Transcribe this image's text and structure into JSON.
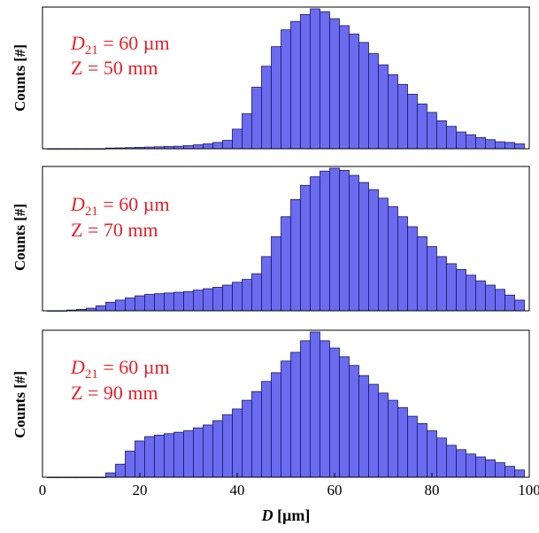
{
  "colors": {
    "bar_fill": "#6b6bf0",
    "bar_edge": "#1a1a66",
    "annotation": "#e8202a"
  },
  "chart_data": [
    {
      "type": "bar",
      "x_axis_label": "",
      "ylabel": "Counts [#]",
      "xlim": [
        0,
        100
      ],
      "annotation": {
        "d_symbol": "D",
        "d_subscript": "21",
        "d_value": " = 60 µm",
        "z_text": "Z = 50 mm"
      },
      "bins": [
        2,
        4,
        6,
        8,
        10,
        12,
        14,
        16,
        18,
        20,
        22,
        24,
        26,
        28,
        30,
        32,
        34,
        36,
        38,
        40,
        42,
        44,
        46,
        48,
        50,
        52,
        54,
        56,
        58,
        60,
        62,
        64,
        66,
        68,
        70,
        72,
        74,
        76,
        78,
        80,
        82,
        84,
        86,
        88,
        90,
        92,
        94,
        96,
        98
      ],
      "values": [
        0,
        0,
        0,
        0,
        0,
        0,
        0.005,
        0.006,
        0.008,
        0.01,
        0.012,
        0.014,
        0.016,
        0.018,
        0.022,
        0.028,
        0.035,
        0.045,
        0.06,
        0.14,
        0.25,
        0.44,
        0.59,
        0.73,
        0.85,
        0.91,
        0.96,
        1.0,
        0.98,
        0.93,
        0.88,
        0.82,
        0.76,
        0.68,
        0.6,
        0.53,
        0.46,
        0.39,
        0.32,
        0.26,
        0.2,
        0.16,
        0.12,
        0.1,
        0.08,
        0.065,
        0.05,
        0.045,
        0.035
      ]
    },
    {
      "type": "bar",
      "x_axis_label": "",
      "ylabel": "Counts [#]",
      "xlim": [
        0,
        100
      ],
      "annotation": {
        "d_symbol": "D",
        "d_subscript": "21",
        "d_value": " = 60 µm",
        "z_text": "Z = 70 mm"
      },
      "bins": [
        2,
        4,
        6,
        8,
        10,
        12,
        14,
        16,
        18,
        20,
        22,
        24,
        26,
        28,
        30,
        32,
        34,
        36,
        38,
        40,
        42,
        44,
        46,
        48,
        50,
        52,
        54,
        56,
        58,
        60,
        62,
        64,
        66,
        68,
        70,
        72,
        74,
        76,
        78,
        80,
        82,
        84,
        86,
        88,
        90,
        92,
        94,
        96,
        98
      ],
      "values": [
        0,
        0,
        0.005,
        0.01,
        0.018,
        0.035,
        0.06,
        0.075,
        0.09,
        0.105,
        0.115,
        0.12,
        0.125,
        0.13,
        0.135,
        0.145,
        0.155,
        0.165,
        0.18,
        0.2,
        0.22,
        0.26,
        0.38,
        0.52,
        0.66,
        0.78,
        0.88,
        0.94,
        0.98,
        1.0,
        0.985,
        0.95,
        0.9,
        0.85,
        0.79,
        0.73,
        0.66,
        0.59,
        0.52,
        0.45,
        0.38,
        0.33,
        0.29,
        0.25,
        0.21,
        0.18,
        0.15,
        0.11,
        0.075
      ]
    },
    {
      "type": "bar",
      "x_axis_label": "D [µm]",
      "ylabel": "Counts [#]",
      "xlim": [
        0,
        100
      ],
      "xticks": [
        0,
        20,
        40,
        60,
        80,
        100
      ],
      "annotation": {
        "d_symbol": "D",
        "d_subscript": "21",
        "d_value": " = 60 µm",
        "z_text": "Z = 90 mm"
      },
      "bins": [
        2,
        4,
        6,
        8,
        10,
        12,
        14,
        16,
        18,
        20,
        22,
        24,
        26,
        28,
        30,
        32,
        34,
        36,
        38,
        40,
        42,
        44,
        46,
        48,
        50,
        52,
        54,
        56,
        58,
        60,
        62,
        64,
        66,
        68,
        70,
        72,
        74,
        76,
        78,
        80,
        82,
        84,
        86,
        88,
        90,
        92,
        94,
        96,
        98
      ],
      "values": [
        0,
        0,
        0,
        0,
        0,
        0,
        0.03,
        0.09,
        0.18,
        0.25,
        0.28,
        0.29,
        0.3,
        0.31,
        0.32,
        0.34,
        0.36,
        0.39,
        0.43,
        0.47,
        0.53,
        0.59,
        0.66,
        0.72,
        0.8,
        0.86,
        0.94,
        1.0,
        0.94,
        0.89,
        0.83,
        0.77,
        0.7,
        0.64,
        0.58,
        0.53,
        0.48,
        0.42,
        0.37,
        0.32,
        0.27,
        0.22,
        0.19,
        0.16,
        0.14,
        0.12,
        0.1,
        0.075,
        0.05
      ]
    }
  ]
}
